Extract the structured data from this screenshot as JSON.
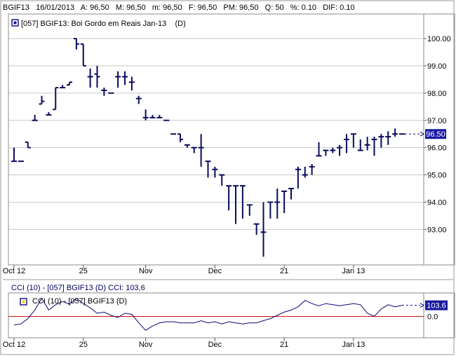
{
  "header": {
    "symbol": "BGIF13",
    "date": "16/01/2013",
    "open": "A: 96,50",
    "min": "M: 96,50",
    "max": "m: 96,50",
    "close": "F: 96,50",
    "avg": "PM: 96,50",
    "qty": "Q: 50",
    "pct": "%: 0.10",
    "dif": "DIF: 0.10"
  },
  "colors": {
    "series": "#0a0a60",
    "cci": "#0a0a7a",
    "zero_line": "#d01010",
    "grid": "#c8c8c8",
    "badge_bg": "#1a1aa0",
    "badge_text": "#ffffff",
    "legend_box": "#1a1a8a",
    "legend_box_cci": "#f0d000"
  },
  "chart_data": [
    {
      "type": "ohlc",
      "legend": "[057] BGIF13: Boi Gordo em Reais Jan-13",
      "legend_suffix": "(D)",
      "y_ticks": [
        "100.00",
        "99.00",
        "98.00",
        "97.00",
        "96.00",
        "95.00",
        "94.00",
        "93.00"
      ],
      "y_tick_values": [
        100,
        99,
        98,
        97,
        96,
        95,
        94,
        93
      ],
      "ylim": [
        91.7,
        100.9
      ],
      "x_ticks": [
        {
          "label": "Oct 12",
          "index": 0
        },
        {
          "label": "25",
          "index": 10
        },
        {
          "label": "Nov",
          "index": 19
        },
        {
          "label": "Dec",
          "index": 29
        },
        {
          "label": "21",
          "index": 39
        },
        {
          "label": "Jan 13",
          "index": 49
        }
      ],
      "last_value_label": "96.50",
      "bars": [
        {
          "o": 95.5,
          "h": 96.0,
          "l": 95.5,
          "c": 95.5
        },
        {
          "o": 95.5,
          "h": 95.5,
          "l": 95.5,
          "c": 95.5
        },
        {
          "o": 96.2,
          "h": 96.2,
          "l": 96.0,
          "c": 96.0
        },
        {
          "o": 97.0,
          "h": 97.2,
          "l": 97.0,
          "c": 97.0
        },
        {
          "o": 97.6,
          "h": 97.9,
          "l": 97.6,
          "c": 97.7
        },
        {
          "o": 97.2,
          "h": 97.3,
          "l": 97.2,
          "c": 97.2
        },
        {
          "o": 97.4,
          "h": 98.2,
          "l": 97.4,
          "c": 98.2
        },
        {
          "o": 98.2,
          "h": 98.3,
          "l": 98.2,
          "c": 98.2
        },
        {
          "o": 98.3,
          "h": 98.4,
          "l": 98.3,
          "c": 98.4
        },
        {
          "o": 100.0,
          "h": 100.0,
          "l": 99.6,
          "c": 99.8
        },
        {
          "o": 99.8,
          "h": 99.8,
          "l": 99.0,
          "c": 99.0
        },
        {
          "o": 98.6,
          "h": 98.9,
          "l": 98.2,
          "c": 98.6
        },
        {
          "o": 98.7,
          "h": 99.0,
          "l": 98.2,
          "c": 98.6
        },
        {
          "o": 98.1,
          "h": 98.2,
          "l": 97.9,
          "c": 98.1
        },
        {
          "o": 98.0,
          "h": 98.0,
          "l": 98.0,
          "c": 98.0
        },
        {
          "o": 98.6,
          "h": 98.8,
          "l": 98.2,
          "c": 98.6
        },
        {
          "o": 98.6,
          "h": 98.8,
          "l": 98.3,
          "c": 98.6
        },
        {
          "o": 98.4,
          "h": 98.6,
          "l": 98.1,
          "c": 98.4
        },
        {
          "o": 97.8,
          "h": 97.9,
          "l": 97.6,
          "c": 97.8
        },
        {
          "o": 97.1,
          "h": 97.4,
          "l": 97.0,
          "c": 97.1
        },
        {
          "o": 97.1,
          "h": 97.2,
          "l": 97.1,
          "c": 97.1
        },
        {
          "o": 97.1,
          "h": 97.2,
          "l": 97.1,
          "c": 97.1
        },
        {
          "o": 97.0,
          "h": 97.0,
          "l": 97.0,
          "c": 97.0
        },
        {
          "o": 96.5,
          "h": 96.5,
          "l": 96.5,
          "c": 96.5
        },
        {
          "o": 96.5,
          "h": 96.5,
          "l": 96.2,
          "c": 96.3
        },
        {
          "o": 96.1,
          "h": 96.1,
          "l": 96.0,
          "c": 96.1
        },
        {
          "o": 96.0,
          "h": 96.0,
          "l": 95.8,
          "c": 96.0
        },
        {
          "o": 96.0,
          "h": 96.5,
          "l": 95.3,
          "c": 96.0
        },
        {
          "o": 95.5,
          "h": 95.5,
          "l": 94.9,
          "c": 95.5
        },
        {
          "o": 95.2,
          "h": 95.3,
          "l": 94.9,
          "c": 95.2
        },
        {
          "o": 95.0,
          "h": 95.0,
          "l": 94.6,
          "c": 95.0
        },
        {
          "o": 94.6,
          "h": 94.6,
          "l": 93.7,
          "c": 94.6
        },
        {
          "o": 94.6,
          "h": 94.6,
          "l": 93.2,
          "c": 94.6
        },
        {
          "o": 94.6,
          "h": 94.6,
          "l": 93.4,
          "c": 94.6
        },
        {
          "o": 93.9,
          "h": 93.9,
          "l": 93.5,
          "c": 93.9
        },
        {
          "o": 93.2,
          "h": 93.2,
          "l": 92.8,
          "c": 93.2
        },
        {
          "o": 92.9,
          "h": 94.0,
          "l": 92.0,
          "c": 92.9
        },
        {
          "o": 94.0,
          "h": 94.0,
          "l": 93.4,
          "c": 94.0
        },
        {
          "o": 94.0,
          "h": 94.5,
          "l": 93.4,
          "c": 94.0
        },
        {
          "o": 94.4,
          "h": 94.4,
          "l": 93.6,
          "c": 94.4
        },
        {
          "o": 94.5,
          "h": 94.5,
          "l": 94.1,
          "c": 94.5
        },
        {
          "o": 95.2,
          "h": 95.3,
          "l": 94.5,
          "c": 95.2
        },
        {
          "o": 95.0,
          "h": 95.3,
          "l": 94.9,
          "c": 95.0
        },
        {
          "o": 95.3,
          "h": 95.4,
          "l": 95.0,
          "c": 95.3
        },
        {
          "o": 95.7,
          "h": 96.2,
          "l": 95.7,
          "c": 95.7
        },
        {
          "o": 95.9,
          "h": 95.9,
          "l": 95.7,
          "c": 95.9
        },
        {
          "o": 95.9,
          "h": 96.0,
          "l": 95.8,
          "c": 95.9
        },
        {
          "o": 96.0,
          "h": 96.1,
          "l": 95.7,
          "c": 96.0
        },
        {
          "o": 96.3,
          "h": 96.5,
          "l": 95.8,
          "c": 96.3
        },
        {
          "o": 96.5,
          "h": 96.5,
          "l": 96.0,
          "c": 96.5
        },
        {
          "o": 95.9,
          "h": 96.3,
          "l": 95.9,
          "c": 95.9
        },
        {
          "o": 96.1,
          "h": 96.4,
          "l": 95.9,
          "c": 96.1
        },
        {
          "o": 96.3,
          "h": 96.4,
          "l": 95.7,
          "c": 96.3
        },
        {
          "o": 96.4,
          "h": 96.5,
          "l": 96.0,
          "c": 96.4
        },
        {
          "o": 96.4,
          "h": 96.6,
          "l": 96.1,
          "c": 96.4
        },
        {
          "o": 96.5,
          "h": 96.7,
          "l": 96.4,
          "c": 96.5
        },
        {
          "o": 96.5,
          "h": 96.5,
          "l": 96.5,
          "c": 96.5
        }
      ]
    },
    {
      "type": "line",
      "header_label": "CCI (10)  - [057] BGIF13 (D)  CCI: 103,6",
      "legend": "CCI (10)  - [057] BGIF13 (D)",
      "y_ticks": [
        "0.0"
      ],
      "y_tick_values": [
        0
      ],
      "ylim": [
        -200,
        220
      ],
      "last_value_label": "103.6",
      "x_ticks": [
        {
          "label": "Oct 12",
          "index": 0
        },
        {
          "label": "25",
          "index": 10
        },
        {
          "label": "Nov",
          "index": 19
        },
        {
          "label": "Dec",
          "index": 29
        },
        {
          "label": "21",
          "index": 39
        },
        {
          "label": "Jan 13",
          "index": 49
        }
      ],
      "values": [
        -80,
        -70,
        -20,
        60,
        170,
        60,
        110,
        140,
        115,
        170,
        120,
        80,
        30,
        40,
        10,
        -10,
        30,
        20,
        -60,
        -130,
        -90,
        -60,
        -50,
        -50,
        -60,
        -60,
        -60,
        -40,
        -60,
        -50,
        -70,
        -50,
        -60,
        -70,
        -60,
        -60,
        -40,
        -20,
        10,
        40,
        60,
        90,
        150,
        120,
        100,
        120,
        110,
        100,
        110,
        120,
        110,
        30,
        0,
        70,
        110,
        90,
        104
      ]
    }
  ]
}
